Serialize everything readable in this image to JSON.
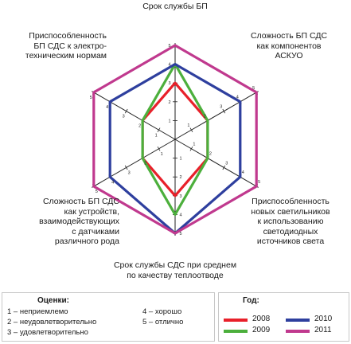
{
  "chart_data": {
    "type": "radar",
    "axes": [
      "Срок службы БП",
      "Сложность БП СДС как компонентов АСКУО",
      "Приспособленность новых светильников к использованию светодиодных источников света",
      "Срок службы СДС при среднем по качеству теплоотводе",
      "Сложность БП СДС как устройств, взаимодействующих с датчиками различного рода",
      "Приспособленность БП СДС к электро-техническим нормам"
    ],
    "axis_label_lines": [
      [
        "Срок службы БП"
      ],
      [
        "Сложность БП СДС",
        "как компонентов",
        "АСКУО"
      ],
      [
        "Приспособленность",
        "новых светильников",
        "к использованию",
        "светодиодных",
        "источников света"
      ],
      [
        "Срок службы СДС при среднем",
        "по качеству теплоотводе"
      ],
      [
        "Сложность БП СДС",
        "как устройств,",
        "взаимодействующих",
        "с датчиками",
        "различного рода"
      ],
      [
        "Приспособленность",
        "БП СДС к электро-",
        "техническим нормам"
      ]
    ],
    "scale": {
      "min": 0,
      "max": 5,
      "ticks": [
        1,
        2,
        3,
        4,
        5
      ]
    },
    "series": [
      {
        "name": "2008",
        "color": "#e8202a",
        "values": [
          3,
          2,
          2,
          3,
          2,
          2
        ]
      },
      {
        "name": "2009",
        "color": "#4caf3c",
        "values": [
          4,
          2,
          2,
          4,
          2,
          2
        ]
      },
      {
        "name": "2010",
        "color": "#2e3f9e",
        "values": [
          4,
          4,
          4,
          5,
          4,
          4
        ]
      },
      {
        "name": "2011",
        "color": "#c0398e",
        "values": [
          5,
          5,
          5,
          5,
          5,
          5
        ]
      }
    ]
  },
  "legend": {
    "ratings_title": "Оценки:",
    "ratings": [
      "1 – неприемлемо",
      "2 – неудовлетворительно",
      "3 – удовлетворительно",
      "4 – хорошо",
      "5 – отлично"
    ],
    "years_title": "Год:",
    "years": [
      {
        "label": "2008",
        "color": "#e8202a"
      },
      {
        "label": "2009",
        "color": "#4caf3c"
      },
      {
        "label": "2010",
        "color": "#2e3f9e"
      },
      {
        "label": "2011",
        "color": "#c0398e"
      }
    ]
  }
}
